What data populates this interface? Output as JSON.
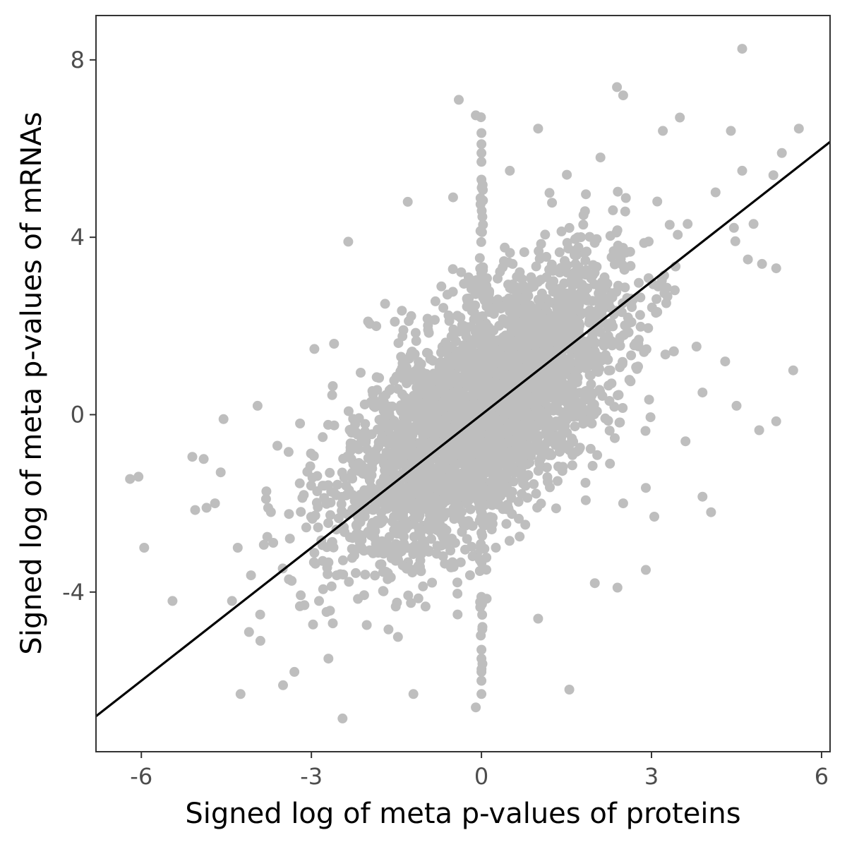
{
  "chart_data": {
    "type": "scatter",
    "title": "",
    "xlabel": "Signed log of meta p-values of proteins",
    "ylabel": "Signed log of meta p-values of mRNAs",
    "xlim": [
      -6.8,
      6.15
    ],
    "ylim": [
      -7.6,
      9.0
    ],
    "x_ticks": [
      -6,
      -3,
      0,
      3,
      6
    ],
    "x_tick_labels": [
      "-6",
      "-3",
      "0",
      "3",
      "6"
    ],
    "y_ticks": [
      -4,
      0,
      4,
      8
    ],
    "y_tick_labels": [
      "-4",
      "0",
      "4",
      "8"
    ],
    "grid": false,
    "point_color": "#bebebe",
    "line_color": "#000000",
    "fit_line": {
      "slope": 1.0,
      "intercept": 0.0
    },
    "points": [
      [
        4.6,
        8.25
      ],
      [
        -0.4,
        7.1
      ],
      [
        -0.1,
        6.75
      ],
      [
        2.5,
        7.2
      ],
      [
        3.5,
        6.7
      ],
      [
        5.6,
        6.45
      ],
      [
        5.3,
        5.9
      ],
      [
        -6.2,
        -1.45
      ],
      [
        -5.95,
        -3.0
      ],
      [
        -5.45,
        -4.2
      ],
      [
        -5.1,
        -0.95
      ],
      [
        -5.05,
        -2.15
      ],
      [
        -4.9,
        -1.0
      ],
      [
        -4.85,
        -2.1
      ],
      [
        -4.55,
        -0.1
      ],
      [
        -4.3,
        -3.0
      ],
      [
        -4.25,
        -6.3
      ],
      [
        -2.45,
        -6.85
      ],
      [
        -1.2,
        -6.3
      ],
      [
        -0.1,
        -6.6
      ],
      [
        1.55,
        -6.2
      ],
      [
        2.9,
        -1.65
      ],
      [
        2.9,
        -3.5
      ],
      [
        4.05,
        -2.2
      ],
      [
        3.9,
        -1.85
      ],
      [
        5.5,
        1.0
      ],
      [
        5.2,
        -0.15
      ],
      [
        4.9,
        -0.35
      ],
      [
        2.4,
        -3.9
      ],
      [
        3.05,
        -2.3
      ],
      [
        -2.35,
        3.9
      ],
      [
        -1.3,
        4.8
      ],
      [
        1.0,
        6.45
      ],
      [
        2.1,
        5.8
      ],
      [
        3.2,
        6.4
      ],
      [
        0.0,
        6.35
      ],
      [
        0.0,
        6.1
      ],
      [
        0.0,
        5.9
      ],
      [
        0.0,
        5.7
      ],
      [
        0.0,
        5.3
      ],
      [
        0.0,
        -5.3
      ],
      [
        0.0,
        -5.5
      ],
      [
        0.0,
        -5.8
      ],
      [
        0.0,
        -6.0
      ],
      [
        0.0,
        -6.3
      ],
      [
        -6.05,
        -1.4
      ],
      [
        4.95,
        3.4
      ],
      [
        5.2,
        3.3
      ],
      [
        4.7,
        3.5
      ],
      [
        4.8,
        4.3
      ],
      [
        5.15,
        5.4
      ],
      [
        4.4,
        6.4
      ],
      [
        4.6,
        5.5
      ],
      [
        -4.6,
        -1.3
      ],
      [
        -4.7,
        -2.0
      ],
      [
        -4.4,
        -4.2
      ],
      [
        -4.1,
        -4.9
      ],
      [
        -3.9,
        -5.1
      ],
      [
        -3.5,
        -6.1
      ],
      [
        -3.3,
        -5.8
      ],
      [
        -2.7,
        -5.5
      ],
      [
        -3.6,
        -0.7
      ],
      [
        -3.95,
        0.2
      ],
      [
        -3.8,
        -1.9
      ],
      [
        -2.0,
        2.1
      ],
      [
        -1.7,
        2.5
      ],
      [
        -2.6,
        1.6
      ],
      [
        2.5,
        -2.0
      ],
      [
        2.0,
        -3.8
      ],
      [
        1.0,
        -4.6
      ],
      [
        1.8,
        4.5
      ],
      [
        1.2,
        5.0
      ],
      [
        0.5,
        5.5
      ],
      [
        -0.5,
        4.9
      ],
      [
        3.9,
        0.5
      ],
      [
        4.3,
        1.2
      ],
      [
        4.5,
        0.2
      ],
      [
        3.6,
        -0.6
      ],
      [
        -3.2,
        -0.2
      ],
      [
        -2.8,
        -3.3
      ]
    ]
  }
}
